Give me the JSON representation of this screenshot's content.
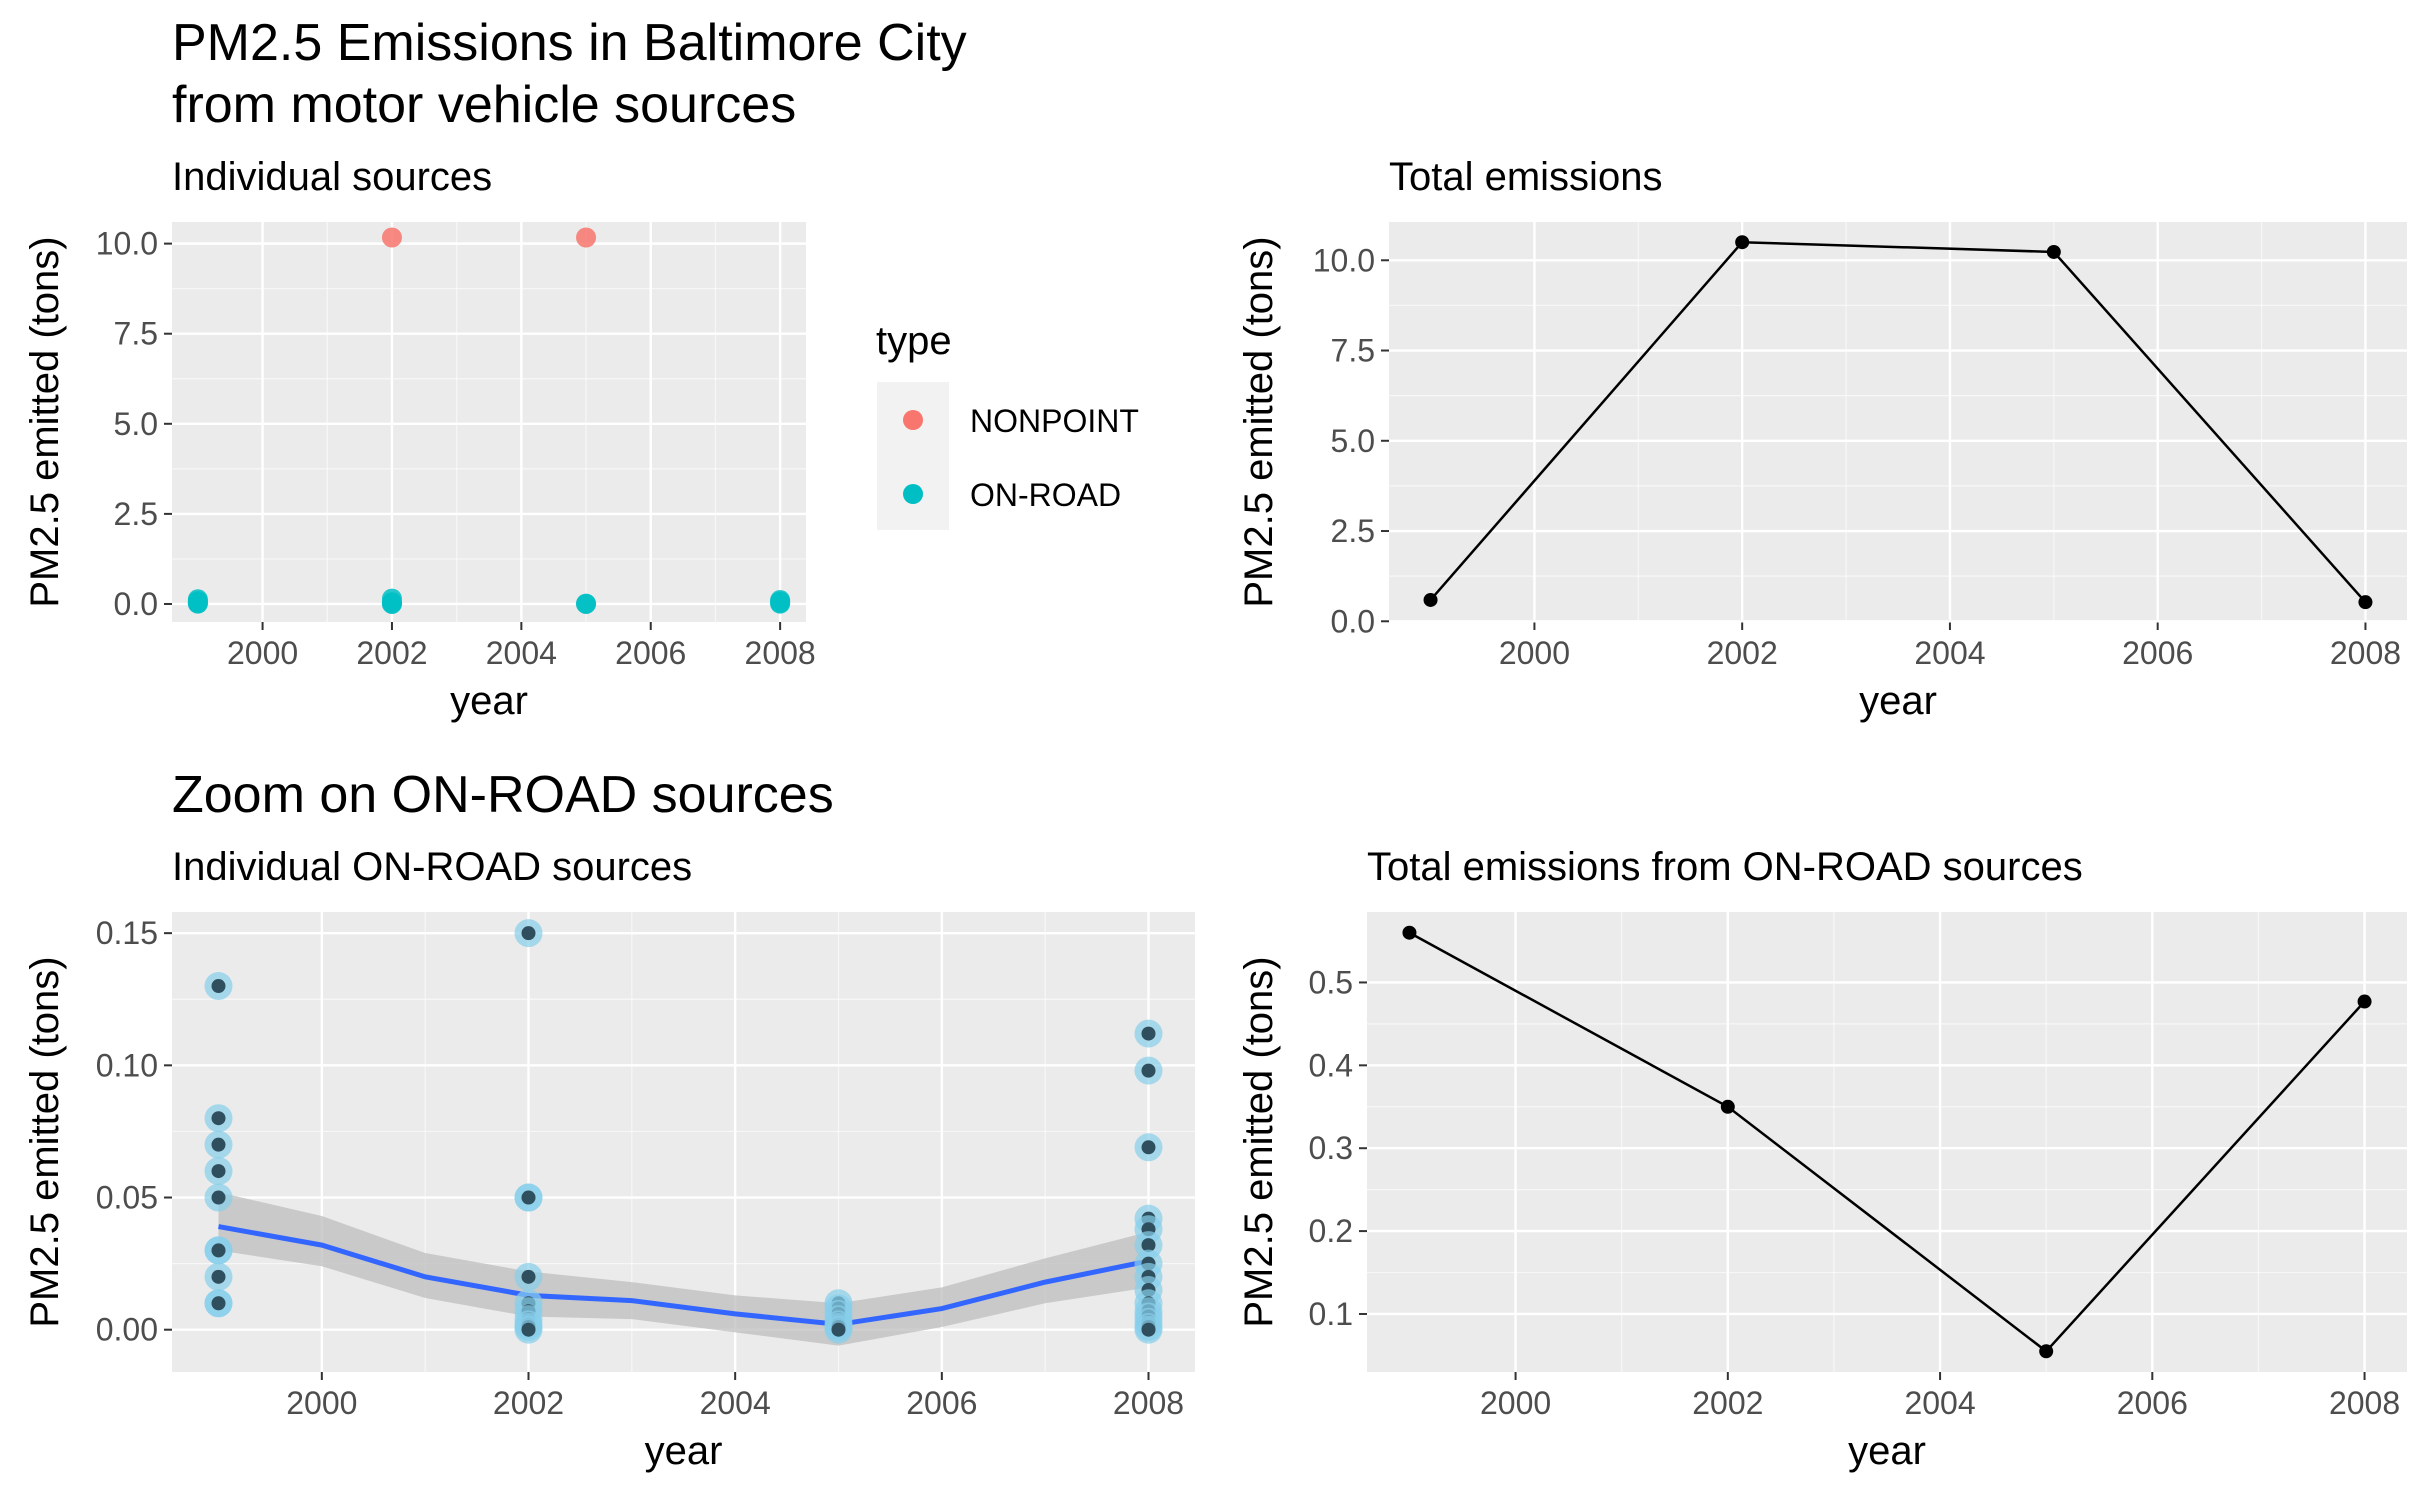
{
  "titles": {
    "top": [
      "PM2.5 Emissions in Baltimore City",
      "from motor vehicle sources"
    ],
    "bottom": "Zoom on ON-ROAD sources"
  },
  "legend": {
    "title": "type",
    "entries": [
      {
        "label": "NONPOINT",
        "color": "#F8766D"
      },
      {
        "label": "ON-ROAD",
        "color": "#00BFC4"
      }
    ]
  },
  "colors": {
    "panel_bg": "#EBEBEB",
    "grid_major": "#FFFFFF",
    "smooth_line": "#3366FF",
    "ribbon": "#BDBDBD",
    "point_outer": "#87CEEB",
    "point_inner": "#2F4F5F",
    "line": "#000000"
  },
  "chart_data": [
    {
      "id": "individual",
      "type": "scatter",
      "subtitle": "Individual sources",
      "xlabel": "year",
      "ylabel": "PM2.5 emitted (tons)",
      "xlim": [
        1998.6,
        2008.4
      ],
      "ylim": [
        -0.5,
        10.6
      ],
      "xticks": [
        2000,
        2002,
        2004,
        2006,
        2008
      ],
      "yticks": [
        0.0,
        2.5,
        5.0,
        7.5,
        10.0
      ],
      "ytick_labels": [
        "0.0",
        "2.5",
        "5.0",
        "7.5",
        "10.0"
      ],
      "series": [
        {
          "name": "NONPOINT",
          "x": [
            2002,
            2005
          ],
          "y": [
            10.17,
            10.17
          ]
        },
        {
          "name": "ON-ROAD",
          "x": [
            1999,
            1999,
            1999,
            1999,
            1999,
            2002,
            2002,
            2002,
            2002,
            2005,
            2005,
            2008,
            2008,
            2008,
            2008
          ],
          "y": [
            0.13,
            0.08,
            0.05,
            0.02,
            0.01,
            0.15,
            0.05,
            0.01,
            0.0,
            0.01,
            0.0,
            0.11,
            0.07,
            0.03,
            0.01
          ]
        }
      ]
    },
    {
      "id": "total",
      "type": "line",
      "subtitle": "Total emissions",
      "xlabel": "year",
      "ylabel": "PM2.5 emitted (tons)",
      "xlim": [
        1998.6,
        2008.4
      ],
      "ylim": [
        -0.02,
        11.06
      ],
      "xticks": [
        2000,
        2002,
        2004,
        2006,
        2008
      ],
      "yticks": [
        0.0,
        2.5,
        5.0,
        7.5,
        10.0
      ],
      "ytick_labels": [
        "0.0",
        "2.5",
        "5.0",
        "7.5",
        "10.0"
      ],
      "x": [
        1999,
        2002,
        2005,
        2008
      ],
      "y": [
        0.59,
        10.5,
        10.23,
        0.53
      ]
    },
    {
      "id": "onroad-individual",
      "type": "scatter",
      "subtitle": "Individual ON-ROAD sources",
      "xlabel": "year",
      "ylabel": "PM2.5 emitted (tons)",
      "xlim": [
        1998.55,
        2008.45
      ],
      "ylim": [
        -0.016,
        0.158
      ],
      "xticks": [
        2000,
        2002,
        2004,
        2006,
        2008
      ],
      "yticks": [
        0.0,
        0.05,
        0.1,
        0.15
      ],
      "ytick_labels": [
        "0.00",
        "0.05",
        "0.10",
        "0.15"
      ],
      "points": {
        "x": [
          1999,
          1999,
          1999,
          1999,
          1999,
          1999,
          1999,
          1999,
          1999,
          1999,
          2002,
          2002,
          2002,
          2002,
          2002,
          2002,
          2002,
          2002,
          2002,
          2002,
          2005,
          2005,
          2005,
          2005,
          2005,
          2005,
          2005,
          2008,
          2008,
          2008,
          2008,
          2008,
          2008,
          2008,
          2008,
          2008,
          2008,
          2008,
          2008,
          2008,
          2008,
          2008
        ],
        "y": [
          0.13,
          0.08,
          0.07,
          0.06,
          0.05,
          0.03,
          0.03,
          0.02,
          0.01,
          0.01,
          0.15,
          0.05,
          0.05,
          0.02,
          0.01,
          0.007,
          0.004,
          0.002,
          0.001,
          0.0,
          0.01,
          0.008,
          0.006,
          0.004,
          0.002,
          0.001,
          0.0,
          0.112,
          0.098,
          0.069,
          0.042,
          0.038,
          0.032,
          0.025,
          0.02,
          0.015,
          0.01,
          0.007,
          0.005,
          0.003,
          0.001,
          0.0
        ]
      },
      "smooth": {
        "x": [
          1999,
          2000,
          2001,
          2002,
          2003,
          2004,
          2005,
          2006,
          2007,
          2008
        ],
        "y": [
          0.039,
          0.032,
          0.02,
          0.013,
          0.011,
          0.006,
          0.002,
          0.008,
          0.018,
          0.026
        ],
        "lower": [
          0.03,
          0.024,
          0.012,
          0.005,
          0.004,
          -0.001,
          -0.006,
          0.001,
          0.01,
          0.016
        ],
        "upper": [
          0.052,
          0.043,
          0.029,
          0.022,
          0.018,
          0.013,
          0.01,
          0.016,
          0.027,
          0.037
        ]
      }
    },
    {
      "id": "onroad-total",
      "type": "line",
      "subtitle": "Total emissions from ON-ROAD sources",
      "xlabel": "year",
      "ylabel": "PM2.5 emitted (tons)",
      "xlim": [
        1998.6,
        2008.4
      ],
      "ylim": [
        0.03,
        0.585
      ],
      "xticks": [
        2000,
        2002,
        2004,
        2006,
        2008
      ],
      "yticks": [
        0.1,
        0.2,
        0.3,
        0.4,
        0.5
      ],
      "ytick_labels": [
        "0.1",
        "0.2",
        "0.3",
        "0.4",
        "0.5"
      ],
      "x": [
        1999,
        2002,
        2005,
        2008
      ],
      "y": [
        0.56,
        0.35,
        0.055,
        0.477
      ]
    }
  ]
}
